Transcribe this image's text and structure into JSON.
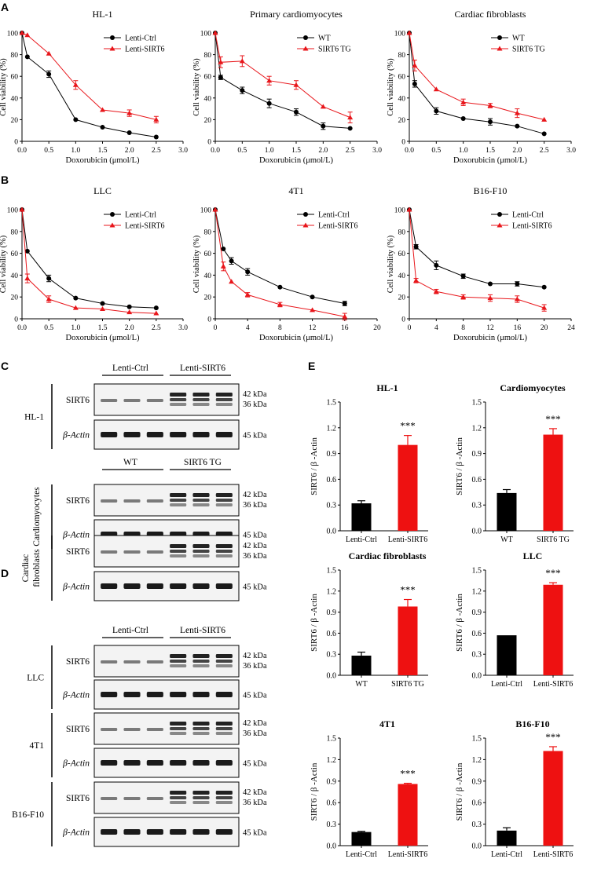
{
  "panels": {
    "A": "A",
    "B": "B",
    "C": "C",
    "D": "D",
    "E": "E"
  },
  "line_charts": [
    {
      "title": "HL-1",
      "xlabel": "Doxorubicin (μmol/L)",
      "ylabel": "Cell viability (%)",
      "xticks": [
        "0.0",
        "0.5",
        "1.0",
        "1.5",
        "2.0",
        "2.5",
        "3.0"
      ],
      "yticks": [
        "0",
        "20",
        "40",
        "60",
        "80",
        "100"
      ]
    },
    {
      "title": "Primary cardiomyocytes",
      "xlabel": "Doxorubicin (μmol/L)",
      "ylabel": "Cell viability (%)",
      "xticks": [
        "0.0",
        "0.5",
        "1.0",
        "1.5",
        "2.0",
        "2.5",
        "3.0"
      ],
      "yticks": [
        "0",
        "20",
        "40",
        "60",
        "80",
        "100"
      ]
    },
    {
      "title": "Cardiac fibroblasts",
      "xlabel": "Doxorubicin (μmol/L)",
      "ylabel": "Cell viability (%)",
      "xticks": [
        "0.0",
        "0.5",
        "1.0",
        "1.5",
        "2.0",
        "2.5",
        "3.0"
      ],
      "yticks": [
        "0",
        "20",
        "40",
        "60",
        "80",
        "100"
      ]
    },
    {
      "title": "LLC",
      "xlabel": "Doxorubicin (μmol/L)",
      "ylabel": "Cell viability (%)",
      "xticks": [
        "0.0",
        "0.5",
        "1.0",
        "1.5",
        "2.0",
        "2.5",
        "3.0"
      ],
      "yticks": [
        "0",
        "20",
        "40",
        "60",
        "80",
        "100"
      ]
    },
    {
      "title": "4T1",
      "xlabel": "Doxorubicin (μmol/L)",
      "ylabel": "Cell viability (%)",
      "xticks": [
        "0",
        "4",
        "8",
        "12",
        "16",
        "20"
      ],
      "yticks": [
        "0",
        "20",
        "40",
        "60",
        "80",
        "100"
      ]
    },
    {
      "title": "B16-F10",
      "xlabel": "Doxorubicin (μmol/L)",
      "ylabel": "Cell viability (%)",
      "xticks": [
        "0",
        "4",
        "8",
        "12",
        "16",
        "20",
        "24"
      ],
      "yticks": [
        "0",
        "20",
        "40",
        "60",
        "80",
        "100"
      ]
    }
  ],
  "chart_data": [
    {
      "type": "line",
      "title": "HL-1",
      "xlim": [
        0,
        3
      ],
      "ylim": [
        0,
        100
      ],
      "series": [
        {
          "name": "Lenti-Ctrl",
          "color": "#000000",
          "x": [
            0,
            0.1,
            0.5,
            1.0,
            1.5,
            2.0,
            2.5
          ],
          "y": [
            100,
            78,
            62,
            20,
            13,
            8,
            4
          ],
          "err": [
            0,
            0,
            3,
            0,
            0,
            0,
            0
          ]
        },
        {
          "name": "Lenti-SIRT6",
          "color": "#e8161b",
          "x": [
            0,
            0.1,
            0.5,
            1.0,
            1.5,
            2.0,
            2.5
          ],
          "y": [
            100,
            98,
            81,
            52,
            29,
            26,
            20
          ],
          "err": [
            0,
            0,
            0,
            4,
            0,
            3,
            3
          ]
        }
      ]
    },
    {
      "type": "line",
      "title": "Primary cardiomyocytes",
      "xlim": [
        0,
        3
      ],
      "ylim": [
        0,
        100
      ],
      "series": [
        {
          "name": "WT",
          "color": "#000000",
          "x": [
            0,
            0.1,
            0.5,
            1.0,
            1.5,
            2.0,
            2.5
          ],
          "y": [
            100,
            59,
            47,
            35,
            27,
            14,
            12
          ],
          "err": [
            0,
            2,
            3,
            4,
            3,
            3,
            0
          ]
        },
        {
          "name": "SIRT6 TG",
          "color": "#e8161b",
          "x": [
            0,
            0.1,
            0.5,
            1.0,
            1.5,
            2.0,
            2.5
          ],
          "y": [
            100,
            73,
            74,
            56,
            52,
            32,
            22
          ],
          "err": [
            0,
            5,
            5,
            4,
            4,
            0,
            5
          ]
        }
      ]
    },
    {
      "type": "line",
      "title": "Cardiac fibroblasts",
      "xlim": [
        0,
        3
      ],
      "ylim": [
        0,
        100
      ],
      "series": [
        {
          "name": "WT",
          "color": "#000000",
          "x": [
            0,
            0.1,
            0.5,
            1.0,
            1.5,
            2.0,
            2.5
          ],
          "y": [
            100,
            53,
            28,
            21,
            18,
            14,
            7
          ],
          "err": [
            0,
            3,
            3,
            0,
            3,
            0,
            0
          ]
        },
        {
          "name": "SIRT6 TG",
          "color": "#e8161b",
          "x": [
            0,
            0.1,
            0.5,
            1.0,
            1.5,
            2.0,
            2.5
          ],
          "y": [
            100,
            70,
            48,
            36,
            33,
            26,
            20
          ],
          "err": [
            0,
            5,
            0,
            3,
            2,
            4,
            0
          ]
        }
      ]
    },
    {
      "type": "line",
      "title": "LLC",
      "xlim": [
        0,
        3
      ],
      "ylim": [
        0,
        100
      ],
      "series": [
        {
          "name": "Lenti-Ctrl",
          "color": "#000000",
          "x": [
            0,
            0.1,
            0.5,
            1.0,
            1.5,
            2.0,
            2.5
          ],
          "y": [
            100,
            62,
            37,
            19,
            14,
            11,
            10
          ],
          "err": [
            0,
            0,
            3,
            0,
            0,
            0,
            0
          ]
        },
        {
          "name": "Lenti-SIRT6",
          "color": "#e8161b",
          "x": [
            0,
            0.1,
            0.5,
            1.0,
            1.5,
            2.0,
            2.5
          ],
          "y": [
            100,
            37,
            18,
            10,
            9,
            6,
            5
          ],
          "err": [
            0,
            4,
            3,
            0,
            0,
            0,
            0
          ]
        }
      ]
    },
    {
      "type": "line",
      "title": "4T1",
      "xlim": [
        0,
        20
      ],
      "ylim": [
        0,
        100
      ],
      "series": [
        {
          "name": "Lenti-Ctrl",
          "color": "#000000",
          "x": [
            0,
            1,
            2,
            4,
            8,
            12,
            16
          ],
          "y": [
            100,
            64,
            53,
            43,
            29,
            20,
            14
          ],
          "err": [
            0,
            0,
            3,
            3,
            0,
            0,
            2
          ]
        },
        {
          "name": "Lenti-SIRT6",
          "color": "#e8161b",
          "x": [
            0,
            1,
            2,
            4,
            8,
            12,
            16
          ],
          "y": [
            100,
            48,
            34,
            22,
            13,
            8,
            2
          ],
          "err": [
            0,
            4,
            0,
            2,
            2,
            0,
            3
          ]
        }
      ]
    },
    {
      "type": "line",
      "title": "B16-F10",
      "xlim": [
        0,
        24
      ],
      "ylim": [
        0,
        100
      ],
      "series": [
        {
          "name": "Lenti-Ctrl",
          "color": "#000000",
          "x": [
            0,
            1,
            4,
            8,
            12,
            16,
            20
          ],
          "y": [
            100,
            66,
            49,
            39,
            32,
            32,
            29
          ],
          "err": [
            0,
            2,
            4,
            2,
            0,
            2,
            0
          ]
        },
        {
          "name": "Lenti-SIRT6",
          "color": "#e8161b",
          "x": [
            0,
            1,
            4,
            8,
            12,
            16,
            20
          ],
          "y": [
            100,
            35,
            25,
            20,
            19,
            18,
            10
          ],
          "err": [
            0,
            2,
            2,
            2,
            3,
            3,
            3
          ]
        }
      ]
    },
    {
      "type": "bar",
      "title": "HL-1",
      "categories": [
        "Lenti-Ctrl",
        "Lenti-SIRT6"
      ],
      "values": [
        0.32,
        1.0
      ],
      "err": [
        0.03,
        0.11
      ],
      "ylim": [
        0,
        1.5
      ],
      "yticks": [
        "0.0",
        "0.3",
        "0.6",
        "0.9",
        "1.2",
        "1.5"
      ],
      "ylabel": "SIRT6 / β -Actin",
      "sig": "***"
    },
    {
      "type": "bar",
      "title": "Cardiomyocytes",
      "categories": [
        "WT",
        "SIRT6 TG"
      ],
      "values": [
        0.44,
        1.12
      ],
      "err": [
        0.04,
        0.07
      ],
      "ylim": [
        0,
        1.5
      ],
      "yticks": [
        "0.0",
        "0.3",
        "0.6",
        "0.9",
        "1.2",
        "1.5"
      ],
      "ylabel": "SIRT6 / β -Actin",
      "sig": "***"
    },
    {
      "type": "bar",
      "title": "Cardiac fibroblasts",
      "categories": [
        "WT",
        "SIRT6 TG"
      ],
      "values": [
        0.28,
        0.98
      ],
      "err": [
        0.05,
        0.1
      ],
      "ylim": [
        0,
        1.5
      ],
      "yticks": [
        "0.0",
        "0.3",
        "0.6",
        "0.9",
        "1.2",
        "1.5"
      ],
      "ylabel": "SIRT6 / β -Actin",
      "sig": "***"
    },
    {
      "type": "bar",
      "title": "LLC",
      "categories": [
        "Lenti-Ctrl",
        "Lenti-SIRT6"
      ],
      "values": [
        0.57,
        1.29
      ],
      "err": [
        0.0,
        0.03
      ],
      "ylim": [
        0,
        1.5
      ],
      "yticks": [
        "0.0",
        "0.3",
        "0.6",
        "0.9",
        "1.2",
        "1.5"
      ],
      "ylabel": "SIRT6 / β -Actin",
      "sig": "***"
    },
    {
      "type": "bar",
      "title": "4T1",
      "categories": [
        "Lenti-Ctrl",
        "Lenti-SIRT6"
      ],
      "values": [
        0.19,
        0.86
      ],
      "err": [
        0.01,
        0.01
      ],
      "ylim": [
        0,
        1.5
      ],
      "yticks": [
        "0.0",
        "0.3",
        "0.6",
        "0.9",
        "1.2",
        "1.5"
      ],
      "ylabel": "SIRT6 / β -Actin",
      "sig": "***"
    },
    {
      "type": "bar",
      "title": "B16-F10",
      "categories": [
        "Lenti-Ctrl",
        "Lenti-SIRT6"
      ],
      "values": [
        0.21,
        1.32
      ],
      "err": [
        0.04,
        0.06
      ],
      "ylim": [
        0,
        1.5
      ],
      "yticks": [
        "0.0",
        "0.3",
        "0.6",
        "0.9",
        "1.2",
        "1.5"
      ],
      "ylabel": "SIRT6 / β -Actin",
      "sig": "***"
    }
  ],
  "blots": [
    {
      "cell": "HL-1",
      "groups": [
        "Lenti-Ctrl",
        "Lenti-SIRT6"
      ],
      "rows": [
        {
          "label": "SIRT6",
          "kda": [
            "42 kDa",
            "36 kDa"
          ],
          "type": "sirt6"
        },
        {
          "label": "β-Actin",
          "kda": [
            "45 kDa"
          ],
          "type": "actin"
        }
      ]
    },
    {
      "cell": "Cardiomyocytes",
      "groups": [
        "WT",
        "SIRT6 TG"
      ],
      "rows": [
        {
          "label": "SIRT6",
          "kda": [
            "42 kDa",
            "36 kDa"
          ],
          "type": "sirt6"
        },
        {
          "label": "β-Actin",
          "kda": [
            "45 kDa"
          ],
          "type": "actin"
        }
      ]
    },
    {
      "cell": "Cardiac fibroblasts",
      "cell_lines": [
        "Cardiac",
        "fibroblasts"
      ],
      "groups": [],
      "rows": [
        {
          "label": "SIRT6",
          "kda": [
            "42 kDa",
            "36 kDa"
          ],
          "type": "sirt6"
        },
        {
          "label": "β-Actin",
          "kda": [
            "45 kDa"
          ],
          "type": "actin"
        }
      ]
    },
    {
      "cell": "LLC",
      "groups": [
        "Lenti-Ctrl",
        "Lenti-SIRT6"
      ],
      "rows": [
        {
          "label": "SIRT6",
          "kda": [
            "42 kDa",
            "36 kDa"
          ],
          "type": "sirt6"
        },
        {
          "label": "β-Actin",
          "kda": [
            "45 kDa"
          ],
          "type": "actin"
        }
      ]
    },
    {
      "cell": "4T1",
      "groups": [],
      "rows": [
        {
          "label": "SIRT6",
          "kda": [
            "42 kDa",
            "36 kDa"
          ],
          "type": "sirt6"
        },
        {
          "label": "β-Actin",
          "kda": [
            "45 kDa"
          ],
          "type": "actin"
        }
      ]
    },
    {
      "cell": "B16-F10",
      "groups": [],
      "rows": [
        {
          "label": "SIRT6",
          "kda": [
            "42 kDa",
            "36 kDa"
          ],
          "type": "sirt6"
        },
        {
          "label": "β-Actin",
          "kda": [
            "45 kDa"
          ],
          "type": "actin"
        }
      ]
    }
  ]
}
